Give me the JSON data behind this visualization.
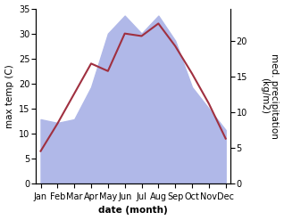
{
  "months": [
    "Jan",
    "Feb",
    "Mar",
    "Apr",
    "May",
    "Jun",
    "Jul",
    "Aug",
    "Sep",
    "Oct",
    "Nov",
    "Dec"
  ],
  "temperature": [
    6.5,
    12.0,
    18.0,
    24.0,
    22.5,
    30.0,
    29.5,
    32.0,
    27.5,
    22.0,
    16.0,
    9.0
  ],
  "precipitation": [
    9.0,
    8.5,
    9.0,
    13.5,
    21.0,
    23.5,
    21.0,
    23.5,
    20.0,
    13.5,
    10.5,
    7.5
  ],
  "temp_color": "#a03040",
  "precip_color": "#b0b8e8",
  "temp_ylim": [
    0,
    35
  ],
  "precip_ylim": [
    0,
    24.5
  ],
  "temp_yticks": [
    0,
    5,
    10,
    15,
    20,
    25,
    30,
    35
  ],
  "precip_yticks": [
    0,
    5,
    10,
    15,
    20
  ],
  "xlabel": "date (month)",
  "ylabel_left": "max temp (C)",
  "ylabel_right": "med. precipitation\n(kg/m2)",
  "label_fontsize": 7.5,
  "tick_fontsize": 7,
  "bg_color": "#ffffff",
  "fig_width": 3.18,
  "fig_height": 2.47,
  "dpi": 100
}
